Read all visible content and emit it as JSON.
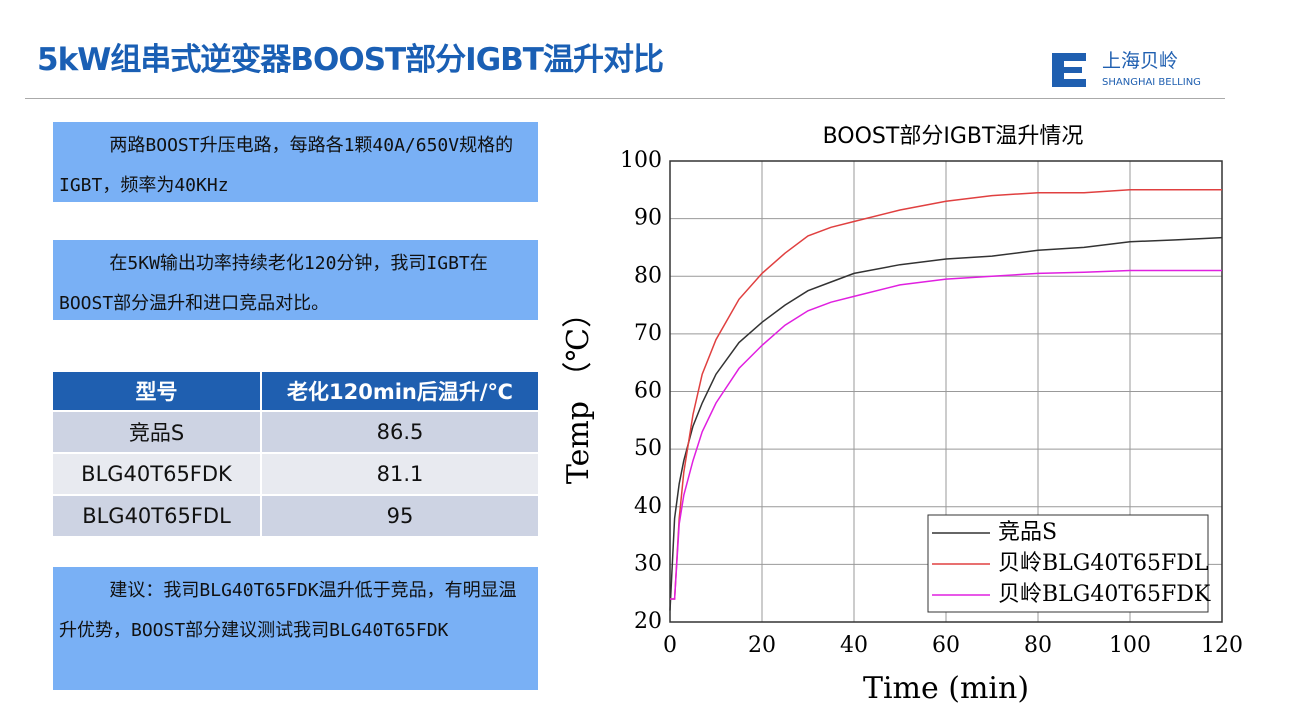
{
  "header": {
    "title": "5kW组串式逆变器BOOST部分IGBT温升对比",
    "logo_cn": "上海贝岭",
    "logo_en": "SHANGHAI BELLING"
  },
  "notes": [
    "两路BOOST升压电路，每路各1颗40A/650V规格的IGBT，频率为40KHz",
    "在5KW输出功率持续老化120分钟，我司IGBT在BOOST部分温升和进口竞品对比。",
    "建议：我司BLG40T65FDK温升低于竞品，有明显温升优势，BOOST部分建议测试我司BLG40T65FDK"
  ],
  "table": {
    "columns": [
      "型号",
      "老化120min后温升/℃"
    ],
    "rows": [
      [
        "竞品S",
        86.5
      ],
      [
        "BLG40T65FDK",
        81.1
      ],
      [
        "BLG40T65FDL",
        95
      ]
    ]
  },
  "chart_data": {
    "type": "line",
    "title": "BOOST部分IGBT温升情况",
    "x_label": "Time (min)",
    "y_label": "Temp （℃）",
    "x": [
      0,
      1,
      2,
      3,
      5,
      7,
      10,
      15,
      20,
      25,
      30,
      35,
      40,
      50,
      60,
      70,
      80,
      90,
      100,
      110,
      120
    ],
    "series": [
      {
        "name": "竞品S",
        "color": "#333333",
        "values": [
          22,
          38,
          44,
          48,
          54,
          58,
          63,
          68.5,
          72,
          75,
          77.5,
          79,
          80.5,
          82,
          83,
          83.5,
          84.5,
          85,
          86,
          86.3,
          86.7
        ]
      },
      {
        "name": "贝岭BLG40T65FDL",
        "color": "#e04040",
        "values": [
          24,
          24,
          38,
          46,
          56,
          63,
          69,
          76,
          80.5,
          84,
          87,
          88.5,
          89.5,
          91.5,
          93,
          94,
          94.5,
          94.5,
          95,
          95,
          95
        ]
      },
      {
        "name": "贝岭BLG40T65FDK",
        "color": "#e020e0",
        "values": [
          24,
          24,
          37,
          42,
          48,
          53,
          58,
          64,
          68,
          71.5,
          74,
          75.5,
          76.5,
          78.5,
          79.5,
          80,
          80.5,
          80.7,
          81,
          81,
          81
        ]
      }
    ],
    "xlim": [
      0,
      120
    ],
    "xticks": [
      0,
      20,
      40,
      60,
      80,
      100,
      120
    ],
    "ylim": [
      20,
      100
    ],
    "yticks": [
      20,
      30,
      40,
      50,
      60,
      70,
      80,
      90,
      100
    ],
    "grid": true,
    "legend": "lower right"
  }
}
